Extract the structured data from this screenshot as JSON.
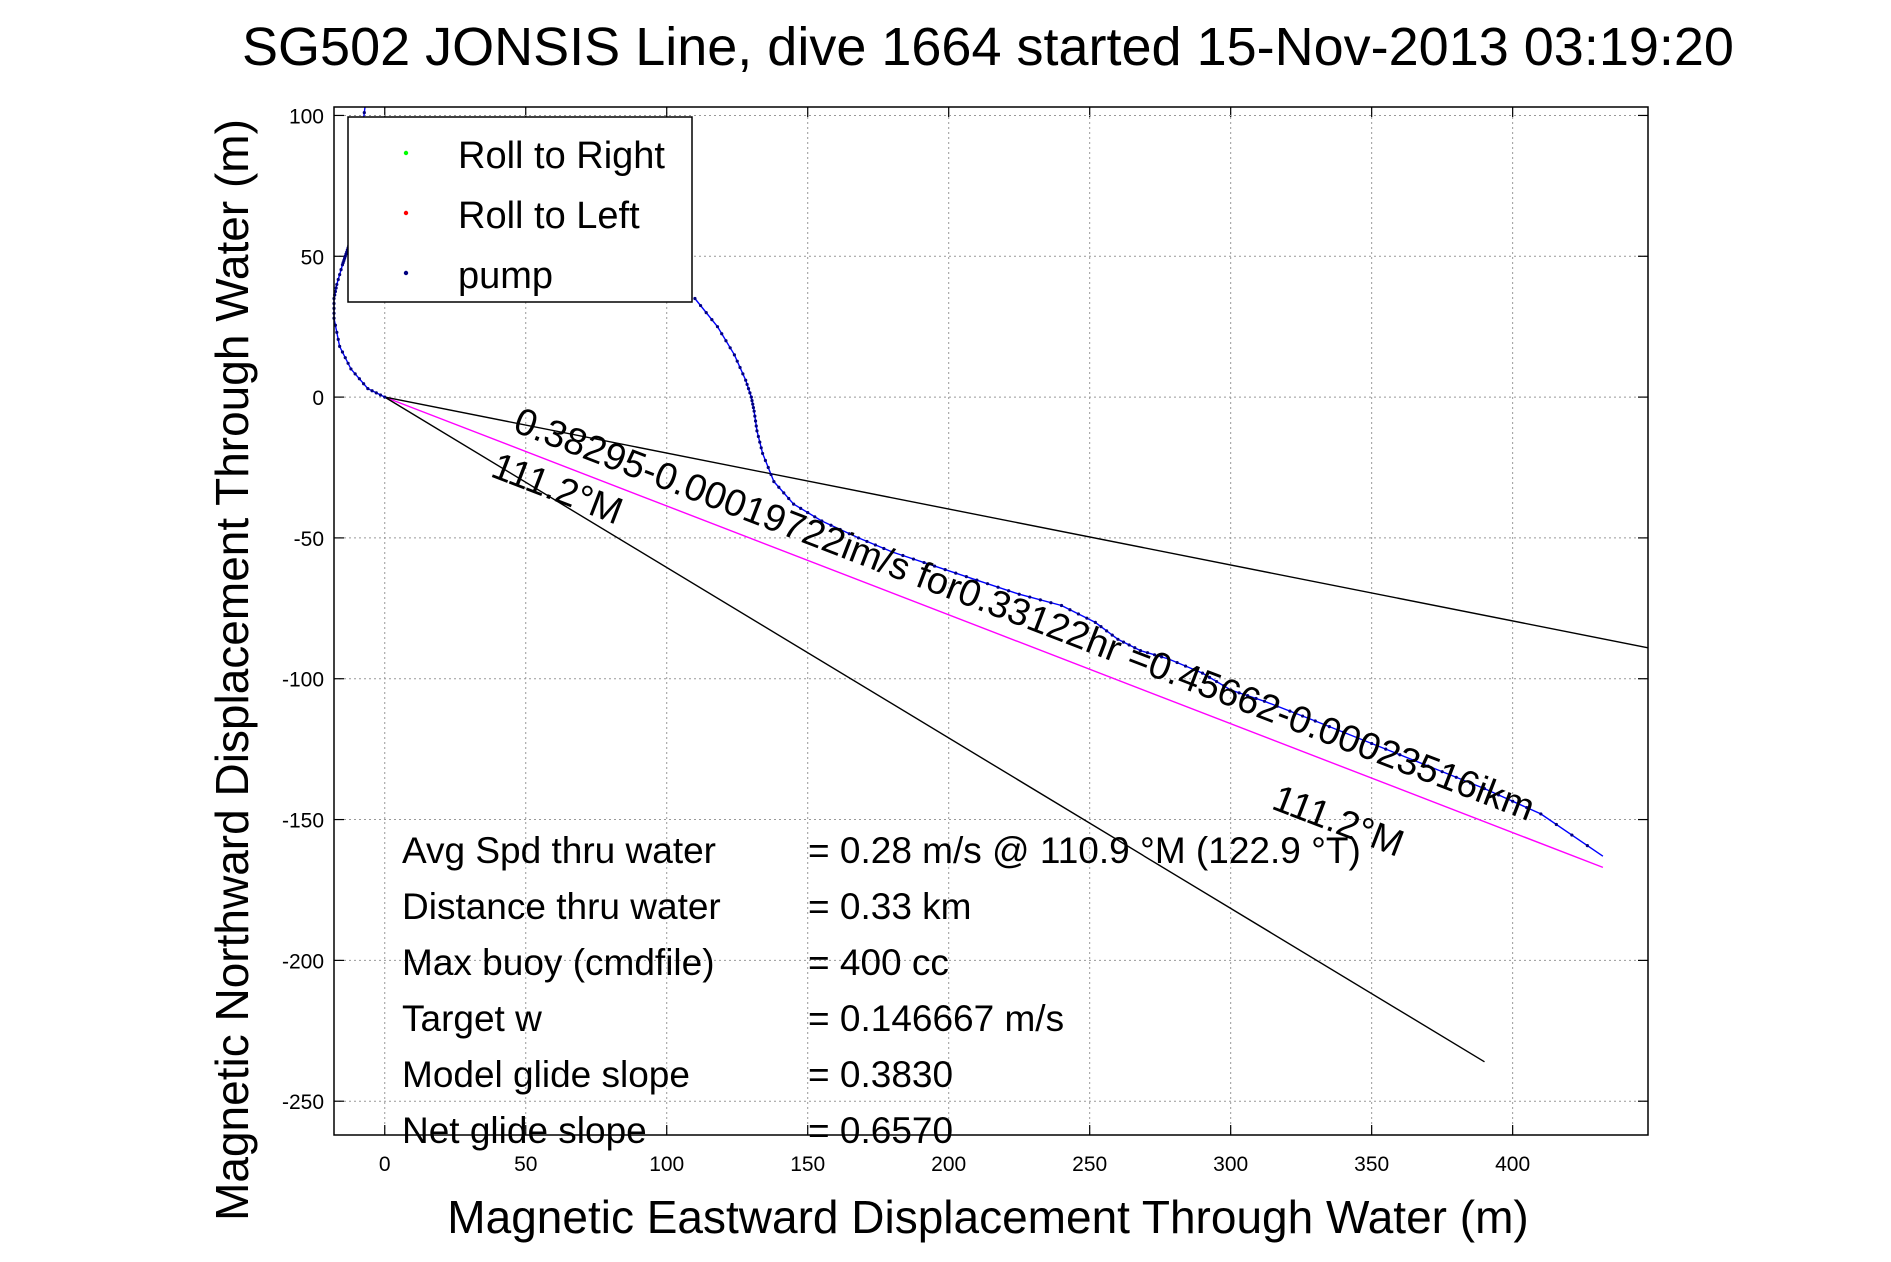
{
  "chart_data": {
    "type": "line",
    "title": "SG502 JONSIS Line, dive 1664 started 15-Nov-2013 03:19:20",
    "xlabel": "Magnetic Eastward Displacement Through Water (m)",
    "ylabel": "Magnetic Northward Displacement Through Water (m)",
    "xlim": [
      -18,
      448
    ],
    "ylim": [
      -262,
      103
    ],
    "xticks": [
      0,
      50,
      100,
      150,
      200,
      250,
      300,
      350,
      400
    ],
    "yticks": [
      100,
      50,
      0,
      -50,
      -100,
      -150,
      -200,
      -250
    ],
    "grid": true,
    "legend": {
      "placement": "top-left",
      "entries": [
        {
          "label": "Roll to Right",
          "color": "#00ff00"
        },
        {
          "label": "Roll to Left",
          "color": "#ff0000"
        },
        {
          "label": "pump",
          "color": "#000080"
        }
      ]
    },
    "series": [
      {
        "name": "",
        "color": "#0000ff",
        "x": [
          0,
          -6,
          -12,
          -16,
          -18,
          -18,
          -17,
          -15,
          -14,
          -13,
          -12,
          -11,
          -10,
          -9,
          -8,
          -7
        ],
        "y": [
          0,
          3,
          10,
          18,
          28,
          35,
          40,
          47,
          50,
          53,
          56,
          62,
          72,
          85,
          95,
          103
        ]
      },
      {
        "name": "",
        "color": "#0000ff",
        "x": [
          110,
          118,
          124,
          128,
          130,
          131,
          132,
          134,
          138,
          145,
          155,
          168,
          180,
          195,
          210,
          225,
          240,
          252,
          260,
          268,
          278,
          290,
          300,
          312,
          330,
          350,
          370,
          390,
          410,
          432
        ],
        "y": [
          35,
          25,
          15,
          6,
          0,
          -5,
          -12,
          -20,
          -30,
          -38,
          -44,
          -50,
          -55,
          -60,
          -65,
          -70,
          -74,
          -80,
          -86,
          -90,
          -93,
          -98,
          -104,
          -108,
          -115,
          -123,
          -131,
          -139,
          -148,
          -163
        ]
      },
      {
        "name": "",
        "color": "#ff00ff",
        "x": [
          0,
          432
        ],
        "y": [
          0,
          -167
        ]
      },
      {
        "name": "",
        "color": "#000000",
        "x": [
          0,
          448
        ],
        "y": [
          0,
          -89
        ]
      },
      {
        "name": "",
        "color": "#000000",
        "x": [
          0,
          390
        ],
        "y": [
          0,
          -236
        ]
      }
    ],
    "annotations": [
      {
        "text": "0.38295-0.00019722im/s for0.33122hr =0.45662-0.00023516ikm",
        "x": 45,
        "y": -12,
        "angle": 21
      },
      {
        "text": "111.2°M",
        "x": 37,
        "y": -28,
        "angle": 21
      },
      {
        "text": "111.2°M",
        "x": 314,
        "y": -146,
        "angle": 21
      }
    ]
  },
  "stats": [
    {
      "label": "Avg Spd thru water",
      "value": "=  0.28 m/s @ 110.9 °M (122.9 °T)"
    },
    {
      "label": "Distance thru water",
      "value": "=  0.33 km"
    },
    {
      "label": "Max buoy (cmdfile)",
      "value": "= 400 cc"
    },
    {
      "label": "Target w",
      "value": "= 0.146667 m/s"
    },
    {
      "label": "Model glide slope",
      "value": "= 0.3830"
    },
    {
      "label": "Net glide slope",
      "value": "= 0.6570"
    }
  ]
}
